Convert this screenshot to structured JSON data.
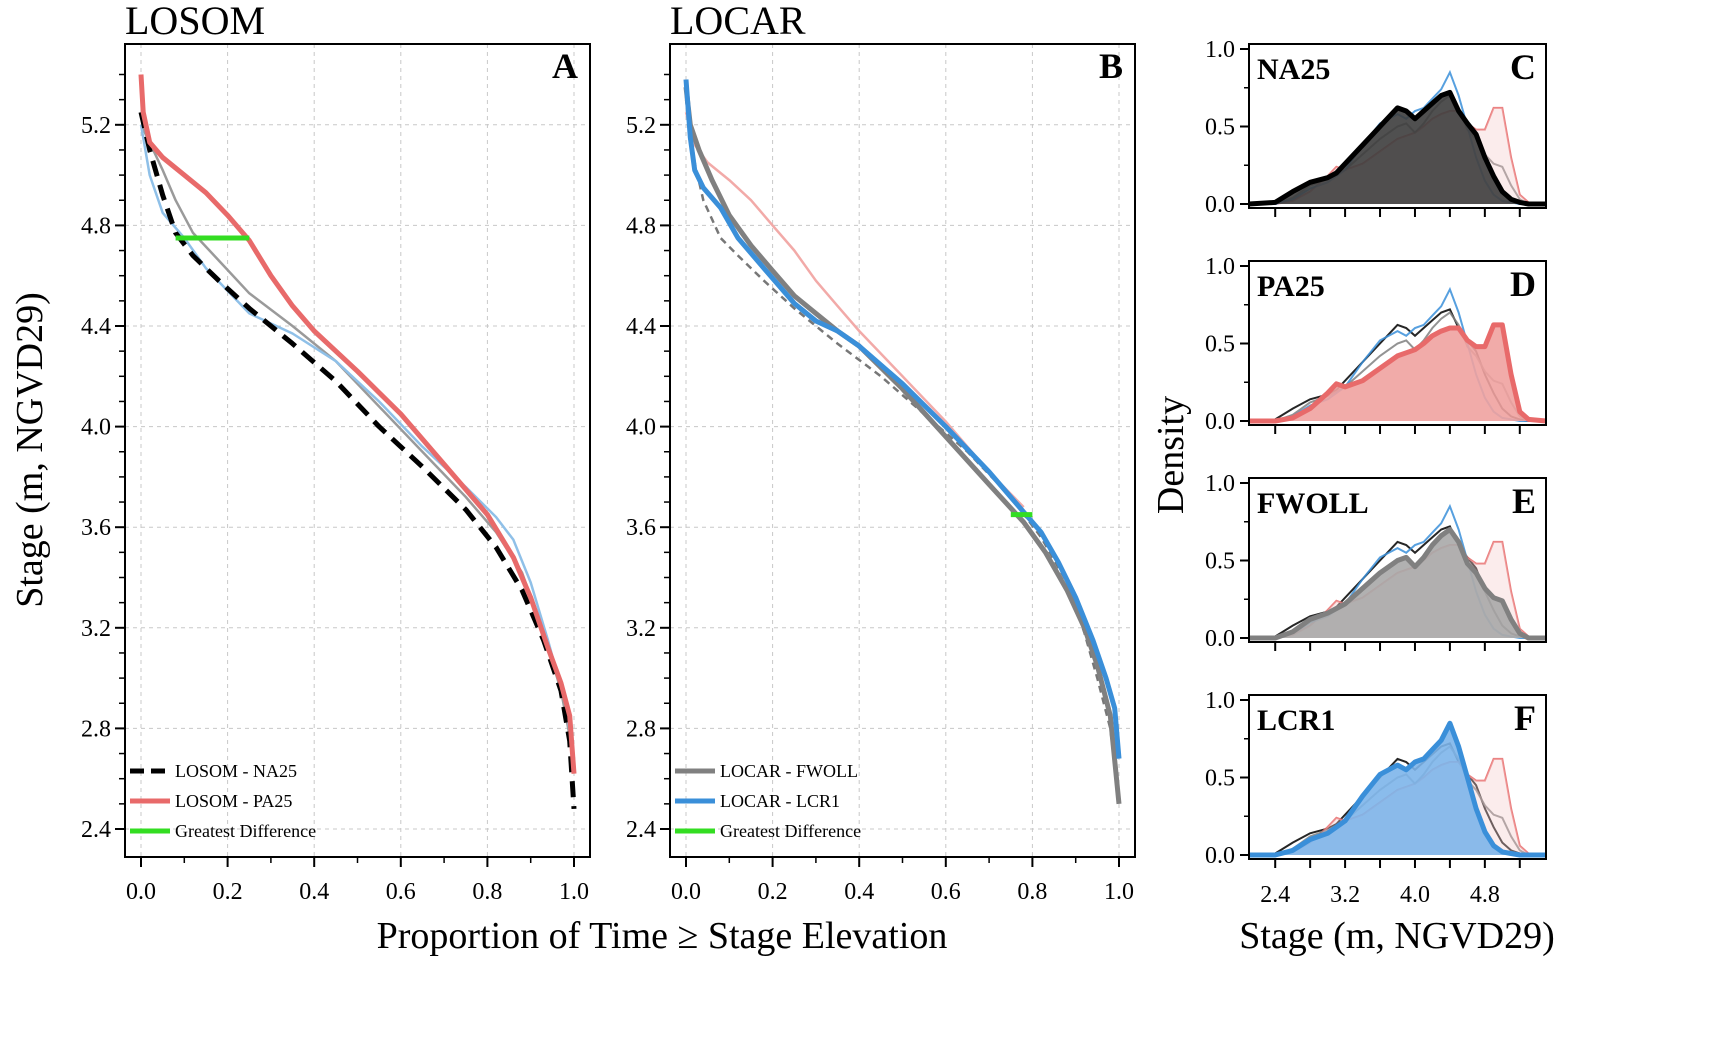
{
  "colors": {
    "na25": "#000000",
    "pa25": "#e86a6a",
    "fwoll": "#808080",
    "lcr1": "#3a8fd9",
    "greatest_difference": "#33dd22"
  },
  "x_axis_label": "Proportion of Time ≥ Stage Elevation",
  "chart_data": [
    {
      "type": "line",
      "title": "LOSOM",
      "panel_label": "A",
      "ylabel": "Stage (m, NGVD29)",
      "xlim": [
        0,
        1
      ],
      "ylim": [
        2.4,
        5.4
      ],
      "x_ticks": [
        "0.0",
        "0.2",
        "0.4",
        "0.6",
        "0.8",
        "1.0"
      ],
      "y_ticks": [
        "2.4",
        "2.8",
        "3.2",
        "3.6",
        "4.0",
        "4.4",
        "4.8",
        "5.2"
      ],
      "series": [
        {
          "name": "LOSOM - NA25",
          "color": "#000000",
          "style": "dashed",
          "x": [
            0,
            0.02,
            0.05,
            0.08,
            0.12,
            0.18,
            0.25,
            0.35,
            0.45,
            0.55,
            0.65,
            0.75,
            0.82,
            0.88,
            0.93,
            0.97,
            0.99,
            1.0
          ],
          "y": [
            5.25,
            5.1,
            4.92,
            4.77,
            4.68,
            4.58,
            4.47,
            4.33,
            4.18,
            4.0,
            3.84,
            3.67,
            3.52,
            3.35,
            3.15,
            2.95,
            2.75,
            2.48
          ]
        },
        {
          "name": "LOSOM - PA25",
          "color": "#e86a6a",
          "style": "solid",
          "x": [
            0,
            0.005,
            0.02,
            0.05,
            0.1,
            0.15,
            0.2,
            0.25,
            0.3,
            0.35,
            0.4,
            0.5,
            0.6,
            0.7,
            0.8,
            0.86,
            0.9,
            0.94,
            0.97,
            0.99,
            1.0
          ],
          "y": [
            5.4,
            5.25,
            5.13,
            5.07,
            5.0,
            4.93,
            4.84,
            4.74,
            4.6,
            4.48,
            4.38,
            4.22,
            4.05,
            3.85,
            3.65,
            3.48,
            3.32,
            3.12,
            2.98,
            2.85,
            2.62
          ]
        },
        {
          "name": "Greatest Difference",
          "color": "#33dd22",
          "style": "solid",
          "x": [
            0.08,
            0.25
          ],
          "y": [
            4.75,
            4.75
          ]
        }
      ],
      "ghost_series": [
        {
          "name": "LOCAR - FWOLL",
          "color": "#9a9a9a",
          "x": [
            0,
            0.02,
            0.05,
            0.08,
            0.12,
            0.18,
            0.25,
            0.35,
            0.45,
            0.55,
            0.65,
            0.75,
            0.82,
            0.88,
            0.93,
            0.97,
            1.0
          ],
          "y": [
            5.2,
            5.13,
            5.02,
            4.9,
            4.77,
            4.66,
            4.53,
            4.4,
            4.26,
            4.08,
            3.9,
            3.72,
            3.58,
            3.42,
            3.18,
            2.95,
            2.68
          ]
        },
        {
          "name": "LOCAR - LCR1",
          "color": "#8fc0e8",
          "x": [
            0,
            0.02,
            0.05,
            0.1,
            0.15,
            0.25,
            0.35,
            0.45,
            0.55,
            0.65,
            0.75,
            0.82,
            0.86,
            0.9,
            0.94,
            0.98,
            1.0
          ],
          "y": [
            5.2,
            5.0,
            4.85,
            4.75,
            4.63,
            4.45,
            4.37,
            4.26,
            4.1,
            3.92,
            3.76,
            3.64,
            3.55,
            3.38,
            3.15,
            2.9,
            2.68
          ]
        }
      ],
      "legend": {
        "position": "bottom-left",
        "entries": [
          "LOSOM - NA25",
          "LOSOM - PA25",
          "Greatest Difference"
        ]
      }
    },
    {
      "type": "line",
      "title": "LOCAR",
      "panel_label": "B",
      "ylabel": "",
      "xlim": [
        0,
        1
      ],
      "ylim": [
        2.4,
        5.4
      ],
      "x_ticks": [
        "0.0",
        "0.2",
        "0.4",
        "0.6",
        "0.8",
        "1.0"
      ],
      "y_ticks": [
        "2.4",
        "2.8",
        "3.2",
        "3.6",
        "4.0",
        "4.4",
        "4.8",
        "5.2"
      ],
      "series": [
        {
          "name": "LOCAR - FWOLL",
          "color": "#808080",
          "style": "solid",
          "x": [
            0,
            0.01,
            0.03,
            0.06,
            0.1,
            0.15,
            0.2,
            0.25,
            0.3,
            0.35,
            0.4,
            0.5,
            0.6,
            0.7,
            0.78,
            0.83,
            0.88,
            0.92,
            0.95,
            0.98,
            1.0
          ],
          "y": [
            5.35,
            5.2,
            5.1,
            4.98,
            4.84,
            4.72,
            4.62,
            4.52,
            4.45,
            4.38,
            4.32,
            4.15,
            3.96,
            3.77,
            3.62,
            3.5,
            3.35,
            3.2,
            3.05,
            2.85,
            2.5
          ]
        },
        {
          "name": "LOCAR - LCR1",
          "color": "#3a8fd9",
          "style": "solid",
          "x": [
            0,
            0.01,
            0.02,
            0.04,
            0.08,
            0.12,
            0.18,
            0.25,
            0.3,
            0.35,
            0.4,
            0.5,
            0.6,
            0.7,
            0.78,
            0.82,
            0.86,
            0.9,
            0.94,
            0.97,
            0.99,
            1.0
          ],
          "y": [
            5.38,
            5.15,
            5.02,
            4.95,
            4.87,
            4.75,
            4.63,
            4.49,
            4.42,
            4.38,
            4.32,
            4.17,
            4.0,
            3.82,
            3.66,
            3.58,
            3.46,
            3.32,
            3.15,
            3.0,
            2.88,
            2.68
          ]
        },
        {
          "name": "Greatest Difference",
          "color": "#33dd22",
          "style": "solid",
          "x": [
            0.75,
            0.8
          ],
          "y": [
            3.65,
            3.65
          ]
        }
      ],
      "ghost_series": [
        {
          "name": "LOSOM - PA25",
          "color": "#f2aaa8",
          "x": [
            0,
            0.02,
            0.05,
            0.1,
            0.15,
            0.2,
            0.25,
            0.3,
            0.35,
            0.4,
            0.5,
            0.6,
            0.7,
            0.78
          ],
          "y": [
            5.25,
            5.12,
            5.05,
            4.98,
            4.9,
            4.8,
            4.7,
            4.58,
            4.48,
            4.38,
            4.2,
            4.02,
            3.82,
            3.68
          ]
        },
        {
          "name": "LOSOM - NA25",
          "color": "#777777",
          "style": "dashed",
          "x": [
            0,
            0.02,
            0.04,
            0.08,
            0.12,
            0.18,
            0.25,
            0.35,
            0.45,
            0.55,
            0.65,
            0.75,
            0.82,
            0.88,
            0.92,
            0.95,
            0.98,
            1.0
          ],
          "y": [
            5.3,
            5.05,
            4.9,
            4.75,
            4.68,
            4.58,
            4.47,
            4.33,
            4.2,
            4.05,
            3.9,
            3.72,
            3.56,
            3.38,
            3.18,
            3.0,
            2.8,
            2.5
          ]
        }
      ],
      "legend": {
        "position": "bottom-left",
        "entries": [
          "LOCAR - FWOLL",
          "LOCAR - LCR1",
          "Greatest Difference"
        ]
      }
    },
    {
      "type": "area",
      "title": "",
      "density_panels": [
        {
          "panel_label": "C",
          "scenario": "NA25",
          "highlight": "na25"
        },
        {
          "panel_label": "D",
          "scenario": "PA25",
          "highlight": "pa25"
        },
        {
          "panel_label": "E",
          "scenario": "FWOLL",
          "highlight": "fwoll"
        },
        {
          "panel_label": "F",
          "scenario": "LCR1",
          "highlight": "lcr1"
        }
      ],
      "xlabel": "Stage (m, NGVD29)",
      "ylabel": "Density",
      "xlim": [
        2.1,
        5.5
      ],
      "ylim": [
        0,
        1.05
      ],
      "x_ticks": [
        "2.4",
        "3.2",
        "4.0",
        "4.8"
      ],
      "y_ticks": [
        "0.0",
        "0.5",
        "1.0"
      ],
      "x": [
        2.1,
        2.4,
        2.6,
        2.8,
        3.0,
        3.1,
        3.2,
        3.4,
        3.6,
        3.8,
        3.9,
        4.0,
        4.1,
        4.2,
        4.3,
        4.4,
        4.5,
        4.6,
        4.7,
        4.8,
        4.9,
        5.0,
        5.1,
        5.2,
        5.3,
        5.5
      ],
      "density_series": [
        {
          "key": "na25",
          "name": "NA25",
          "values": [
            0,
            0.01,
            0.08,
            0.14,
            0.17,
            0.2,
            0.26,
            0.38,
            0.5,
            0.62,
            0.6,
            0.55,
            0.6,
            0.65,
            0.7,
            0.72,
            0.6,
            0.52,
            0.45,
            0.3,
            0.18,
            0.08,
            0.03,
            0.01,
            0,
            0
          ]
        },
        {
          "key": "pa25",
          "name": "PA25",
          "values": [
            0,
            0,
            0.02,
            0.08,
            0.18,
            0.24,
            0.22,
            0.26,
            0.34,
            0.42,
            0.44,
            0.46,
            0.5,
            0.55,
            0.58,
            0.6,
            0.6,
            0.52,
            0.48,
            0.48,
            0.62,
            0.62,
            0.3,
            0.06,
            0.01,
            0
          ]
        },
        {
          "key": "fwoll",
          "name": "FWOLL",
          "values": [
            0,
            0,
            0.04,
            0.12,
            0.16,
            0.19,
            0.22,
            0.32,
            0.42,
            0.5,
            0.52,
            0.46,
            0.52,
            0.6,
            0.66,
            0.7,
            0.62,
            0.48,
            0.42,
            0.32,
            0.26,
            0.24,
            0.12,
            0.03,
            0,
            0
          ]
        },
        {
          "key": "lcr1",
          "name": "LCR1",
          "values": [
            0,
            0,
            0.03,
            0.1,
            0.14,
            0.18,
            0.22,
            0.38,
            0.52,
            0.58,
            0.55,
            0.6,
            0.62,
            0.68,
            0.74,
            0.85,
            0.7,
            0.5,
            0.3,
            0.15,
            0.06,
            0.02,
            0.01,
            0,
            0,
            0
          ]
        }
      ]
    }
  ]
}
